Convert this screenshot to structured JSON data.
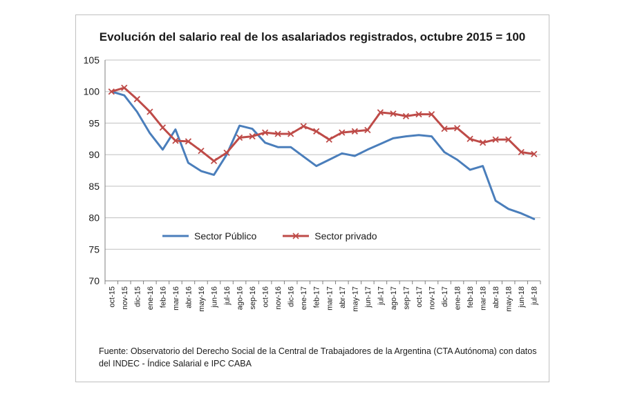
{
  "chart_data": {
    "type": "line",
    "title": "Evolución del salario real de los asalariados registrados, octubre 2015 = 100",
    "xlabel": "",
    "ylabel": "",
    "ylim": [
      70,
      105
    ],
    "yticks": [
      70,
      75,
      80,
      85,
      90,
      95,
      100,
      105
    ],
    "grid": true,
    "legend_placement": "center",
    "categories": [
      "oct-15",
      "nov-15",
      "dic-15",
      "ene-16",
      "feb-16",
      "mar-16",
      "abr-16",
      "may-16",
      "jun-16",
      "jul-16",
      "ago-16",
      "sep-16",
      "oct-16",
      "nov-16",
      "dic-16",
      "ene-17",
      "feb-17",
      "mar-17",
      "abr-17",
      "may-17",
      "jun-17",
      "jul-17",
      "ago-17",
      "sep-17",
      "oct-17",
      "nov-17",
      "dic-17",
      "ene-18",
      "feb-18",
      "mar-18",
      "abr-18",
      "may-18",
      "jun-18",
      "jul-18"
    ],
    "series": [
      {
        "name": "Sector Público",
        "color": "#4a7ebb",
        "marker": "none",
        "values": [
          100.0,
          99.4,
          96.8,
          93.4,
          90.8,
          94.0,
          88.7,
          87.4,
          86.8,
          90.0,
          94.6,
          94.1,
          91.9,
          91.2,
          91.2,
          89.7,
          88.2,
          89.2,
          90.2,
          89.8,
          90.8,
          91.7,
          92.6,
          92.9,
          93.1,
          92.9,
          90.4,
          89.2,
          87.6,
          88.2,
          82.7,
          81.4,
          80.7,
          79.8
        ]
      },
      {
        "name": "Sector privado",
        "color": "#be4b48",
        "marker": "x",
        "values": [
          100.0,
          100.6,
          98.8,
          96.8,
          94.3,
          92.2,
          92.1,
          90.6,
          89.0,
          90.3,
          92.7,
          92.9,
          93.5,
          93.3,
          93.3,
          94.5,
          93.7,
          92.4,
          93.5,
          93.7,
          93.9,
          96.7,
          96.5,
          96.1,
          96.4,
          96.4,
          94.1,
          94.2,
          92.5,
          91.9,
          92.4,
          92.4,
          90.4,
          90.1
        ]
      }
    ],
    "source_note": "Fuente: Observatorio del Derecho Social de la Central de Trabajadores de la Argentina (CTA Autónoma) con datos del INDEC - Índice Salarial e IPC CABA"
  }
}
